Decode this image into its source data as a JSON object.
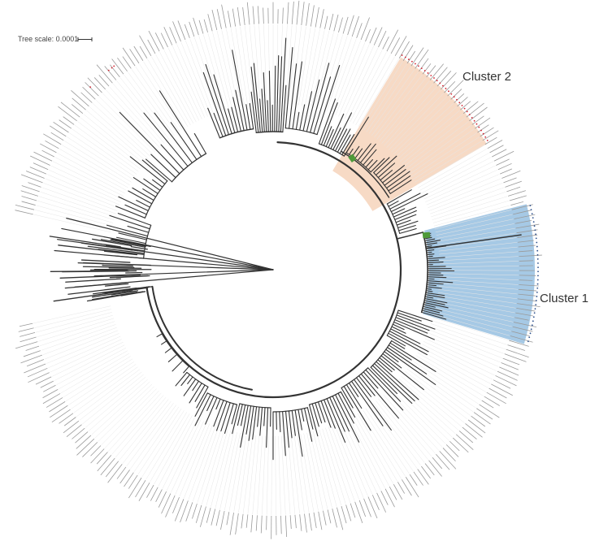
{
  "tree_scale": {
    "label": "Tree scale: 0.0001"
  },
  "clusters": [
    {
      "label": "Cluster 1",
      "color": "#9cc3e2",
      "marker_color": "#2b4f8c"
    },
    {
      "label": "Cluster 2",
      "color": "#f6d6bf",
      "marker_color": "#d42430"
    }
  ],
  "colors": {
    "branch": "#333333",
    "tip_label_ring": "#9a9a9a",
    "leaf_guides": "#e6e6e6",
    "highlight_node": "#4e9a3a"
  }
}
